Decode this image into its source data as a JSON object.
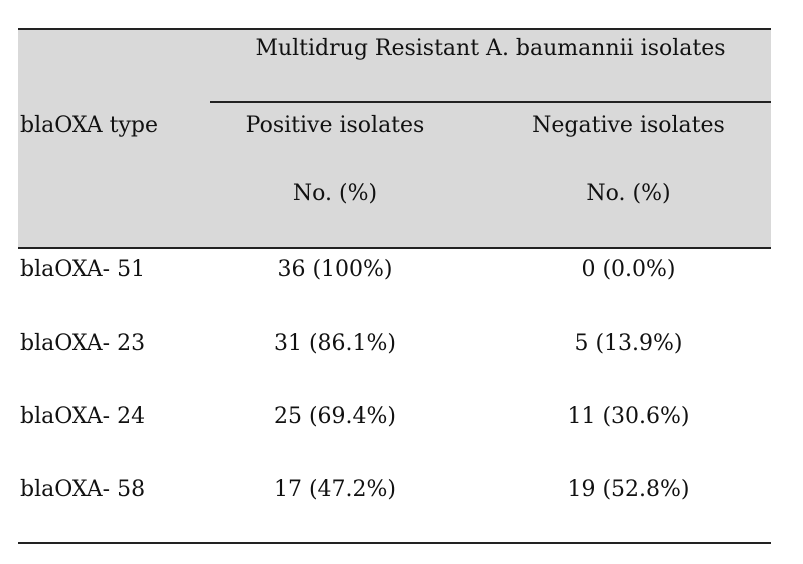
{
  "table": {
    "group_header": "Multidrug Resistant A. baumannii isolates",
    "row_header": "blaOXA type",
    "columns": [
      {
        "label": "Positive isolates",
        "unit": "No. (%)"
      },
      {
        "label": "Negative isolates",
        "unit": "No. (%)"
      }
    ],
    "rows": [
      {
        "type": "blaOXA- 51",
        "positive": "36 (100%)",
        "negative": "0 (0.0%)"
      },
      {
        "type": "blaOXA- 23",
        "positive": "31 (86.1%)",
        "negative": "5 (13.9%)"
      },
      {
        "type": "blaOXA- 24",
        "positive": "25 (69.4%)",
        "negative": "11 (30.6%)"
      },
      {
        "type": "blaOXA- 58",
        "positive": "17 (47.2%)",
        "negative": "19 (52.8%)"
      }
    ]
  }
}
